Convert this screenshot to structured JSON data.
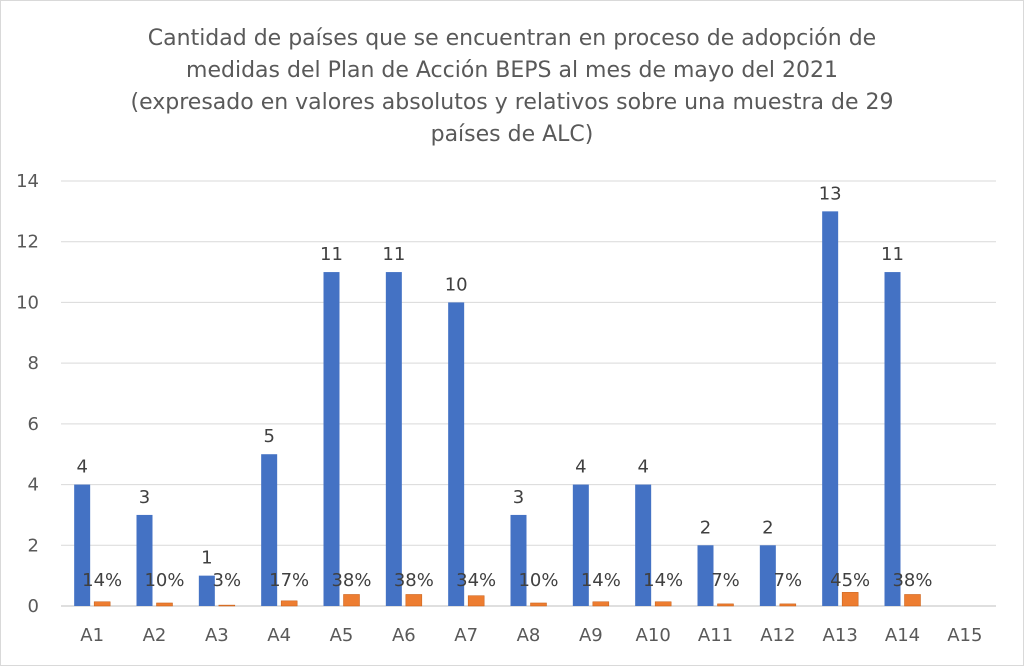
{
  "chart_data": {
    "type": "bar",
    "title_lines": [
      "Cantidad de países que se encuentran en proceso de adopción de",
      "medidas del Plan de Acción BEPS al mes de mayo del 2021",
      "(expresado en valores absolutos y relativos sobre una muestra de 29",
      "países de ALC)"
    ],
    "categories": [
      "A1",
      "A2",
      "A3",
      "A4",
      "A5",
      "A6",
      "A7",
      "A8",
      "A9",
      "A10",
      "A11",
      "A12",
      "A13",
      "A14",
      "A15"
    ],
    "series": [
      {
        "color": "#4472C4",
        "values": [
          4,
          3,
          1,
          5,
          11,
          11,
          10,
          3,
          4,
          4,
          2,
          2,
          13,
          11,
          null
        ],
        "labels": [
          "4",
          "3",
          "1",
          "5",
          "11",
          "11",
          "10",
          "3",
          "4",
          "4",
          "2",
          "2",
          "13",
          "11",
          ""
        ]
      },
      {
        "color": "#ED7D31",
        "values": [
          0.14,
          0.1,
          0.03,
          0.17,
          0.38,
          0.38,
          0.34,
          0.1,
          0.14,
          0.14,
          0.07,
          0.07,
          0.45,
          0.38,
          null
        ],
        "labels": [
          "14%",
          "10%",
          "3%",
          "17%",
          "38%",
          "38%",
          "34%",
          "10%",
          "14%",
          "14%",
          "7%",
          "7%",
          "45%",
          "38%",
          ""
        ]
      }
    ],
    "y_ticks": [
      "0",
      "2",
      "4",
      "6",
      "8",
      "10",
      "12",
      "14"
    ],
    "ylim": [
      0,
      14
    ],
    "grid": true,
    "legend": "none"
  }
}
